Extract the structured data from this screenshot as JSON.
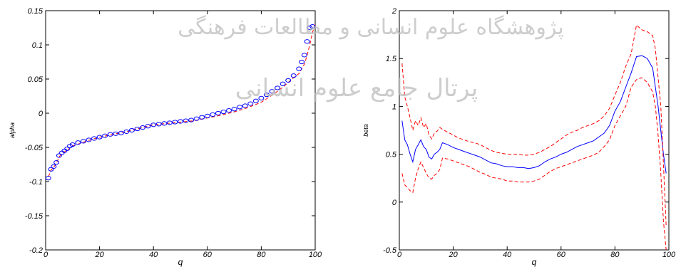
{
  "watermark": {
    "line1": "پژوهشگاه علوم انسانی و مطالعات فرهنگی",
    "line2": "پرتال جامع علوم انسانی",
    "color": "#bdbdbd"
  },
  "chart_data": [
    {
      "type": "scatter",
      "title": "",
      "xlabel": "q",
      "ylabel": "alpha",
      "xlim": [
        0,
        100
      ],
      "ylim": [
        -0.2,
        0.15
      ],
      "xticks": [
        "0",
        "20",
        "40",
        "60",
        "80",
        "100"
      ],
      "yticks": [
        "-0.2",
        "-0.15",
        "-0.1",
        "-0.05",
        "0",
        "0.05",
        "0.1",
        "0.15"
      ],
      "grid": false,
      "legend": "none",
      "series": [
        {
          "marker": "circle",
          "color": "#0000ff",
          "x": [
            1,
            2,
            3,
            4,
            5,
            6,
            7,
            8,
            9,
            10,
            12,
            14,
            16,
            18,
            20,
            22,
            24,
            26,
            28,
            30,
            32,
            34,
            36,
            38,
            40,
            42,
            44,
            46,
            48,
            50,
            52,
            54,
            56,
            58,
            60,
            62,
            64,
            66,
            68,
            70,
            72,
            74,
            76,
            78,
            80,
            82,
            84,
            86,
            88,
            90,
            92,
            94,
            95,
            96,
            97,
            98,
            99
          ],
          "y": [
            -0.095,
            -0.082,
            -0.078,
            -0.072,
            -0.062,
            -0.058,
            -0.055,
            -0.052,
            -0.048,
            -0.046,
            -0.043,
            -0.041,
            -0.039,
            -0.037,
            -0.035,
            -0.033,
            -0.031,
            -0.03,
            -0.029,
            -0.027,
            -0.025,
            -0.023,
            -0.021,
            -0.019,
            -0.017,
            -0.016,
            -0.015,
            -0.014,
            -0.013,
            -0.012,
            -0.011,
            -0.01,
            -0.008,
            -0.006,
            -0.004,
            -0.002,
            0.0,
            0.002,
            0.004,
            0.006,
            0.009,
            0.011,
            0.014,
            0.018,
            0.022,
            0.027,
            0.032,
            0.037,
            0.043,
            0.048,
            0.055,
            0.065,
            0.075,
            0.085,
            0.105,
            0.125,
            0.127
          ]
        },
        {
          "style": "dashed",
          "color": "#ff0000",
          "x": [
            1,
            2,
            3,
            4,
            5,
            6,
            8,
            10,
            15,
            20,
            25,
            30,
            35,
            40,
            45,
            50,
            55,
            60,
            65,
            70,
            75,
            80,
            85,
            88,
            90,
            92,
            94,
            96,
            97,
            98,
            99,
            100
          ],
          "y": [
            -0.093,
            -0.083,
            -0.079,
            -0.073,
            -0.064,
            -0.059,
            -0.054,
            -0.048,
            -0.041,
            -0.035,
            -0.031,
            -0.027,
            -0.022,
            -0.017,
            -0.015,
            -0.013,
            -0.011,
            -0.007,
            -0.003,
            0.002,
            0.008,
            0.016,
            0.029,
            0.038,
            0.045,
            0.052,
            0.058,
            0.072,
            0.085,
            0.1,
            0.118,
            0.13
          ]
        }
      ]
    },
    {
      "type": "line",
      "title": "",
      "xlabel": "q",
      "ylabel": "beta",
      "xlim": [
        0,
        100
      ],
      "ylim": [
        -0.5,
        2
      ],
      "xticks": [
        "0",
        "20",
        "40",
        "60",
        "80",
        "100"
      ],
      "yticks": [
        "-0.5",
        "0",
        "0.5",
        "1",
        "1.5",
        "2"
      ],
      "grid": false,
      "legend": "none",
      "series": [
        {
          "style": "solid",
          "color": "#0000ff",
          "x": [
            1,
            2,
            3,
            4,
            5,
            6,
            7,
            8,
            9,
            10,
            11,
            12,
            13,
            14,
            15,
            16,
            18,
            20,
            22,
            24,
            26,
            28,
            30,
            32,
            34,
            36,
            38,
            40,
            42,
            44,
            46,
            48,
            50,
            52,
            54,
            56,
            58,
            60,
            62,
            64,
            66,
            68,
            70,
            72,
            74,
            76,
            78,
            80,
            82,
            84,
            86,
            88,
            90,
            92,
            94,
            96,
            98,
            99
          ],
          "y": [
            0.85,
            0.65,
            0.6,
            0.5,
            0.42,
            0.55,
            0.6,
            0.65,
            0.58,
            0.55,
            0.47,
            0.45,
            0.5,
            0.52,
            0.55,
            0.62,
            0.6,
            0.57,
            0.55,
            0.53,
            0.51,
            0.49,
            0.47,
            0.44,
            0.41,
            0.4,
            0.38,
            0.37,
            0.37,
            0.36,
            0.36,
            0.35,
            0.36,
            0.38,
            0.42,
            0.45,
            0.47,
            0.5,
            0.52,
            0.55,
            0.58,
            0.6,
            0.62,
            0.64,
            0.68,
            0.72,
            0.8,
            0.95,
            1.05,
            1.2,
            1.35,
            1.52,
            1.53,
            1.5,
            1.4,
            1.0,
            0.5,
            0.3
          ]
        },
        {
          "style": "dashed",
          "color": "#ff0000",
          "x": [
            1,
            2,
            3,
            4,
            5,
            6,
            7,
            8,
            9,
            10,
            11,
            12,
            13,
            14,
            15,
            16,
            18,
            20,
            22,
            24,
            26,
            28,
            30,
            32,
            34,
            36,
            38,
            40,
            42,
            44,
            46,
            48,
            50,
            52,
            54,
            56,
            58,
            60,
            62,
            64,
            66,
            68,
            70,
            72,
            74,
            76,
            78,
            80,
            82,
            84,
            86,
            88,
            90,
            92,
            94,
            95,
            96,
            97,
            98,
            99
          ],
          "y": [
            1.45,
            1.1,
            1.0,
            0.88,
            0.75,
            0.85,
            0.8,
            0.88,
            0.78,
            0.82,
            0.7,
            0.66,
            0.72,
            0.74,
            0.78,
            0.76,
            0.73,
            0.7,
            0.67,
            0.65,
            0.63,
            0.62,
            0.6,
            0.57,
            0.54,
            0.52,
            0.51,
            0.5,
            0.5,
            0.5,
            0.49,
            0.49,
            0.5,
            0.52,
            0.55,
            0.58,
            0.62,
            0.66,
            0.7,
            0.73,
            0.75,
            0.78,
            0.8,
            0.82,
            0.85,
            0.9,
            0.98,
            1.12,
            1.25,
            1.42,
            1.55,
            1.85,
            1.8,
            1.78,
            1.74,
            1.6,
            1.3,
            1.0,
            0.4,
            -0.25
          ]
        },
        {
          "style": "dashed",
          "color": "#ff0000",
          "x": [
            1,
            2,
            3,
            4,
            5,
            6,
            7,
            8,
            9,
            10,
            11,
            12,
            13,
            14,
            15,
            16,
            18,
            20,
            22,
            24,
            26,
            28,
            30,
            32,
            34,
            36,
            38,
            40,
            42,
            44,
            46,
            48,
            50,
            52,
            54,
            56,
            58,
            60,
            62,
            64,
            66,
            68,
            70,
            72,
            74,
            76,
            78,
            80,
            82,
            84,
            86,
            88,
            90,
            92,
            94,
            95,
            96,
            97,
            98,
            99
          ],
          "y": [
            0.3,
            0.18,
            0.15,
            0.12,
            0.1,
            0.25,
            0.35,
            0.42,
            0.36,
            0.3,
            0.25,
            0.24,
            0.28,
            0.3,
            0.34,
            0.46,
            0.45,
            0.43,
            0.41,
            0.39,
            0.37,
            0.34,
            0.31,
            0.29,
            0.26,
            0.25,
            0.24,
            0.22,
            0.22,
            0.21,
            0.21,
            0.21,
            0.22,
            0.24,
            0.28,
            0.32,
            0.35,
            0.37,
            0.39,
            0.41,
            0.43,
            0.45,
            0.47,
            0.49,
            0.52,
            0.58,
            0.65,
            0.8,
            0.9,
            1.0,
            1.2,
            1.28,
            1.3,
            1.25,
            1.15,
            1.0,
            0.7,
            0.3,
            -0.2,
            -0.5
          ]
        }
      ]
    }
  ]
}
